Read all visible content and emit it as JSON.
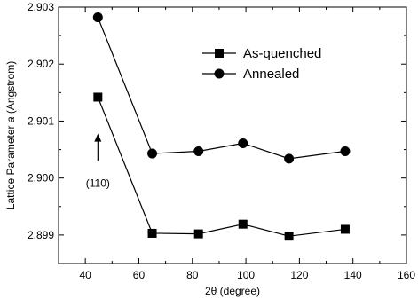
{
  "chart_data": {
    "type": "line",
    "xlabel": "2θ (degree)",
    "ylabel_prefix": "Lattice Parameter ",
    "ylabel_var": "a",
    "ylabel_suffix": " (Angstrom)",
    "xlim": [
      30,
      160
    ],
    "ylim": [
      2.8985,
      2.903
    ],
    "xticks": [
      40,
      60,
      80,
      100,
      120,
      140,
      160
    ],
    "yticks": [
      2.899,
      2.9,
      2.901,
      2.902,
      2.903
    ],
    "ytick_labels": [
      "2.899",
      "2.900",
      "2.901",
      "2.902",
      "2.903"
    ],
    "legend_position": "top-right",
    "grid": false,
    "series": [
      {
        "name": "As-quenched",
        "marker": "square",
        "x": [
          44.7,
          65.0,
          82.3,
          98.9,
          116.1,
          137.1
        ],
        "y": [
          2.90142,
          2.89903,
          2.89902,
          2.89919,
          2.89898,
          2.8991
        ]
      },
      {
        "name": "Annealed",
        "marker": "circle",
        "x": [
          44.7,
          65.0,
          82.3,
          98.9,
          116.1,
          137.1
        ],
        "y": [
          2.90282,
          2.90043,
          2.90047,
          2.90061,
          2.90034,
          2.90047
        ]
      }
    ],
    "annotations": [
      {
        "text": "(110)",
        "arrow_from": [
          44.7,
          2.9003
        ],
        "arrow_to": [
          44.7,
          2.90078
        ],
        "text_at": [
          44.7,
          2.89985
        ]
      }
    ]
  }
}
